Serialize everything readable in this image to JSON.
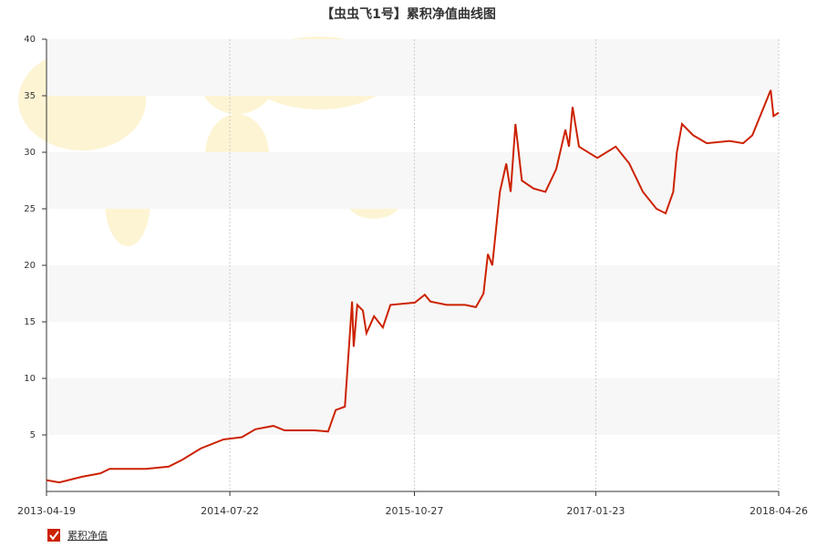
{
  "chart_data": {
    "type": "line",
    "title": "【虫虫飞1号】累积净值曲线图",
    "x": [
      "2013-04-19",
      "2013-05-21",
      "2013-07-17",
      "2013-09-01",
      "2013-09-24",
      "2013-12-24",
      "2014-02-19",
      "2014-03-25",
      "2014-05-10",
      "2014-07-06",
      "2014-08-21",
      "2014-09-24",
      "2014-11-08",
      "2014-12-06",
      "2015-02-19",
      "2015-03-25",
      "2015-04-13",
      "2015-05-06",
      "2015-05-24",
      "2015-05-28",
      "2015-06-06",
      "2015-06-20",
      "2015-06-29",
      "2015-07-18",
      "2015-08-09",
      "2015-08-28",
      "2015-10-28",
      "2015-11-22",
      "2015-12-06",
      "2016-01-16",
      "2016-03-02",
      "2016-03-29",
      "2016-04-17",
      "2016-04-28",
      "2016-05-09",
      "2016-05-28",
      "2016-06-13",
      "2016-06-24",
      "2016-07-06",
      "2016-07-22",
      "2016-08-20",
      "2016-09-19",
      "2016-10-16",
      "2016-11-08",
      "2016-11-17",
      "2016-11-26",
      "2016-12-12",
      "2017-01-27",
      "2017-03-14",
      "2017-04-17",
      "2017-05-21",
      "2017-06-24",
      "2017-07-17",
      "2017-08-05",
      "2017-08-14",
      "2017-08-27",
      "2017-09-24",
      "2017-10-28",
      "2017-12-24",
      "2018-01-27",
      "2018-02-19",
      "2018-03-14",
      "2018-04-06",
      "2018-04-13",
      "2018-04-26"
    ],
    "series": [
      {
        "name": "累积净值",
        "color": "#cc2200",
        "values": [
          1.0,
          0.8,
          1.3,
          1.6,
          2.0,
          2.0,
          2.2,
          2.8,
          3.8,
          4.6,
          4.8,
          5.5,
          5.8,
          5.4,
          5.4,
          5.3,
          7.2,
          7.5,
          16.8,
          12.8,
          16.5,
          16.0,
          14.0,
          15.5,
          14.5,
          16.5,
          16.7,
          17.4,
          16.8,
          16.5,
          16.5,
          16.3,
          17.5,
          21.0,
          20.0,
          26.5,
          29.0,
          26.5,
          32.5,
          27.5,
          26.8,
          26.5,
          28.5,
          32.0,
          30.5,
          34.0,
          30.5,
          29.5,
          30.5,
          29.0,
          26.5,
          25.0,
          24.6,
          26.5,
          30.0,
          32.5,
          31.5,
          30.8,
          31.0,
          30.8,
          31.5,
          33.5,
          35.5,
          33.2,
          33.5
        ]
      }
    ],
    "xlim": [
      "2013-04-19",
      "2018-04-26"
    ],
    "xticks": [
      "2013-04-19",
      "2014-07-22",
      "2015-10-27",
      "2017-01-23",
      "2018-04-26"
    ],
    "ylim": [
      0,
      40
    ],
    "yticks": [
      5,
      10,
      15,
      20,
      25,
      30,
      35,
      40
    ],
    "grid": true
  }
}
